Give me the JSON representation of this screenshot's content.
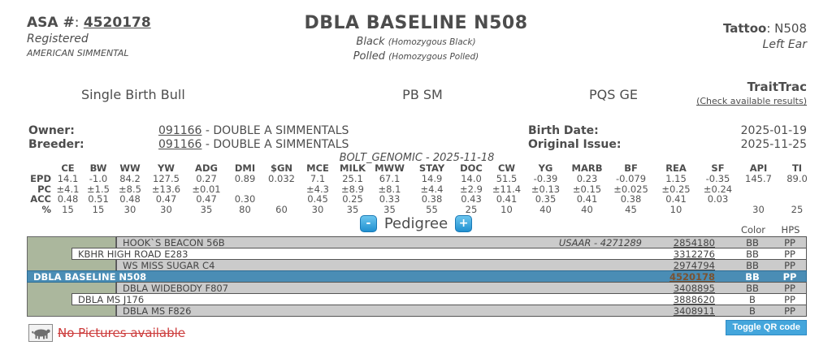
{
  "header": {
    "asa_label": "ASA #",
    "asa_number": "4520178",
    "registered": "Registered",
    "breed": "AMERICAN SIMMENTAL",
    "title": "DBLA BASELINE N508",
    "color_main": "Black",
    "color_paren": "(Homozygous Black)",
    "polled_main": "Polled",
    "polled_paren": "(Homozygous Polled)",
    "tattoo_label": "Tattoo",
    "tattoo_value": "N508",
    "tattoo_location": "Left Ear"
  },
  "subheader": {
    "birth_type": "Single Birth Bull",
    "breed_code": "PB SM",
    "codes": "PQS GE",
    "traittrac_label": "TraitTrac",
    "traittrac_link": "(Check available results)"
  },
  "details": {
    "owner_label": "Owner:",
    "owner_id": "091166",
    "owner_name": " - DOUBLE A SIMMENTALS",
    "breeder_label": "Breeder:",
    "breeder_id": "091166",
    "breeder_name": " - DOUBLE A SIMMENTALS",
    "birth_date_label": "Birth Date:",
    "birth_date": "2025-01-19",
    "original_issue_label": "Original Issue:",
    "original_issue": "2025-11-25",
    "genomic_note": "BOLT_GENOMIC - 2025-11-18"
  },
  "epd_table": {
    "columns": [
      "CE",
      "BW",
      "WW",
      "YW",
      "ADG",
      "DMI",
      "$GN",
      "MCE",
      "MILK",
      "MWW",
      "STAY",
      "DOC",
      "CW",
      "YG",
      "MARB",
      "BF",
      "REA",
      "SF",
      "API",
      "TI"
    ],
    "rows": [
      {
        "label": "EPD",
        "values": [
          "14.1",
          "-1.0",
          "84.2",
          "127.5",
          "0.27",
          "0.89",
          "0.032",
          "7.1",
          "25.1",
          "67.1",
          "14.9",
          "14.0",
          "51.5",
          "-0.39",
          "0.23",
          "-0.079",
          "1.15",
          "-0.35",
          "145.7",
          "89.0"
        ]
      },
      {
        "label": "PC",
        "values": [
          "±4.1",
          "±1.5",
          "±8.5",
          "±13.6",
          "±0.01",
          "",
          "",
          "±4.3",
          "±8.9",
          "±8.1",
          "±4.4",
          "±2.9",
          "±11.4",
          "±0.13",
          "±0.15",
          "±0.025",
          "±0.25",
          "±0.24",
          "",
          ""
        ]
      },
      {
        "label": "ACC",
        "values": [
          "0.48",
          "0.51",
          "0.48",
          "0.47",
          "0.47",
          "0.30",
          "",
          "0.45",
          "0.25",
          "0.33",
          "0.38",
          "0.43",
          "0.41",
          "0.35",
          "0.41",
          "0.38",
          "0.41",
          "0.03",
          "",
          ""
        ]
      },
      {
        "label": "%",
        "values": [
          "15",
          "15",
          "30",
          "30",
          "35",
          "80",
          "60",
          "30",
          "35",
          "35",
          "55",
          "25",
          "10",
          "40",
          "40",
          "45",
          "10",
          "",
          "30",
          "25"
        ]
      }
    ]
  },
  "pedigree": {
    "minus_label": "-",
    "plus_label": "+",
    "title": "Pedigree",
    "color_header": "Color",
    "hps_header": "HPS",
    "rows": [
      {
        "name": "HOOK`S BEACON 56B",
        "extra": "USAAR - 4271289",
        "reg": "2854180",
        "color": "BB",
        "hps": "PP",
        "generation": 2,
        "highlight": false
      },
      {
        "name": "KBHR HIGH ROAD E283",
        "extra": "",
        "reg": "3312276",
        "color": "BB",
        "hps": "PP",
        "generation": 1,
        "highlight": false
      },
      {
        "name": "WS MISS SUGAR C4",
        "extra": "",
        "reg": "2974794",
        "color": "BB",
        "hps": "PP",
        "generation": 2,
        "highlight": false
      },
      {
        "name": "DBLA BASELINE N508",
        "extra": "",
        "reg": "4520178",
        "color": "BB",
        "hps": "PP",
        "generation": 0,
        "highlight": true
      },
      {
        "name": "DBLA WIDEBODY F807",
        "extra": "",
        "reg": "3408895",
        "color": "BB",
        "hps": "PP",
        "generation": 2,
        "highlight": false
      },
      {
        "name": "DBLA MS J176",
        "extra": "",
        "reg": "3888620",
        "color": "B",
        "hps": "PP",
        "generation": 1,
        "highlight": false
      },
      {
        "name": "DBLA MS F826",
        "extra": "",
        "reg": "3408911",
        "color": "B",
        "hps": "PP",
        "generation": 2,
        "highlight": false
      }
    ],
    "toggle_qr_label": "Toggle QR code"
  },
  "footer": {
    "no_pictures": "No Pictures available",
    "bull_icon": "bull-icon"
  },
  "colors": {
    "highlight_row": "#4a8db5",
    "pedigree_green": "#abb79d",
    "pedigree_gray": "#cbcbcb",
    "button_blue": "#2090d0",
    "no_pictures_red": "#cc3b3b"
  }
}
